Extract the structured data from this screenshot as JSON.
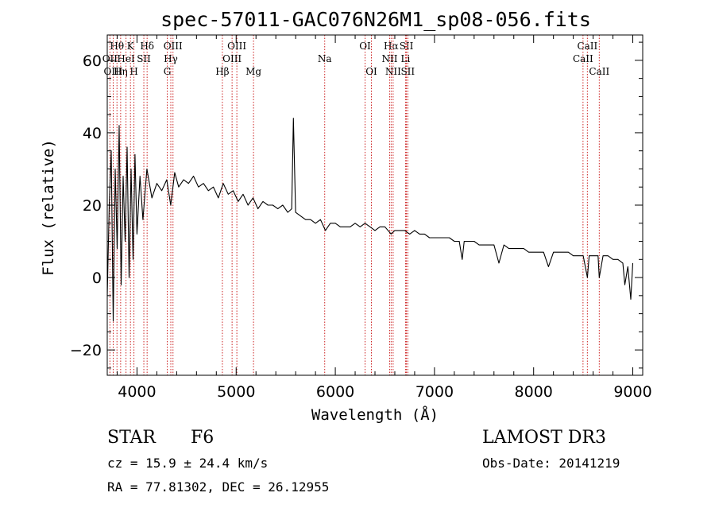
{
  "chart_data": {
    "type": "line",
    "title": "spec-57011-GAC076N26M1_sp08-056.fits",
    "xlabel": "Wavelength (Å)",
    "ylabel": "Flux (relative)",
    "xlim": [
      3700,
      9100
    ],
    "ylim": [
      -27,
      67
    ],
    "xticks": [
      4000,
      5000,
      6000,
      7000,
      8000,
      9000
    ],
    "yticks": [
      -20,
      0,
      20,
      40,
      60
    ],
    "line_color": "#000000",
    "marker_color": "#cc2222",
    "series": [
      {
        "name": "flux",
        "x": [
          3700,
          3720,
          3740,
          3760,
          3780,
          3800,
          3820,
          3840,
          3860,
          3880,
          3900,
          3920,
          3940,
          3960,
          3980,
          4000,
          4030,
          4060,
          4100,
          4150,
          4200,
          4250,
          4300,
          4340,
          4380,
          4420,
          4470,
          4520,
          4570,
          4620,
          4670,
          4720,
          4770,
          4820,
          4870,
          4920,
          4970,
          5020,
          5070,
          5120,
          5170,
          5220,
          5270,
          5320,
          5370,
          5420,
          5470,
          5520,
          5560,
          5577,
          5600,
          5650,
          5700,
          5750,
          5800,
          5850,
          5900,
          5950,
          6000,
          6050,
          6100,
          6150,
          6200,
          6250,
          6300,
          6350,
          6400,
          6450,
          6500,
          6563,
          6600,
          6650,
          6700,
          6750,
          6800,
          6850,
          6900,
          6950,
          7000,
          7050,
          7100,
          7150,
          7200,
          7250,
          7280,
          7300,
          7350,
          7400,
          7450,
          7500,
          7550,
          7600,
          7650,
          7700,
          7750,
          7800,
          7850,
          7900,
          7950,
          8000,
          8050,
          8100,
          8150,
          8200,
          8250,
          8300,
          8350,
          8400,
          8450,
          8500,
          8542,
          8560,
          8600,
          8650,
          8662,
          8700,
          8750,
          8800,
          8850,
          8900,
          8920,
          8950,
          8980,
          9000
        ],
        "values": [
          -5,
          20,
          35,
          -12,
          30,
          8,
          42,
          -2,
          28,
          10,
          36,
          0,
          30,
          5,
          34,
          12,
          28,
          16,
          30,
          22,
          26,
          24,
          27,
          20,
          29,
          25,
          27,
          26,
          28,
          25,
          26,
          24,
          25,
          22,
          26,
          23,
          24,
          21,
          23,
          20,
          22,
          19,
          21,
          20,
          20,
          19,
          20,
          18,
          19,
          44,
          18,
          17,
          16,
          16,
          15,
          16,
          13,
          15,
          15,
          14,
          14,
          14,
          15,
          14,
          15,
          14,
          13,
          14,
          14,
          12,
          13,
          13,
          13,
          12,
          13,
          12,
          12,
          11,
          11,
          11,
          11,
          11,
          10,
          10,
          5,
          10,
          10,
          10,
          9,
          9,
          9,
          9,
          4,
          9,
          8,
          8,
          8,
          8,
          7,
          7,
          7,
          7,
          3,
          7,
          7,
          7,
          7,
          6,
          6,
          6,
          0,
          6,
          6,
          6,
          0,
          6,
          6,
          5,
          5,
          4,
          -2,
          3,
          -6,
          4
        ]
      }
    ],
    "lines": [
      {
        "name": "Hθ",
        "x": 3798,
        "row": 0
      },
      {
        "name": "OII",
        "x": 3727,
        "row": 1
      },
      {
        "name": "OIII",
        "x": 3760,
        "row": 2
      },
      {
        "name": "Hη",
        "x": 3835,
        "row": 2
      },
      {
        "name": "K",
        "x": 3934,
        "row": 0
      },
      {
        "name": "HeI",
        "x": 3889,
        "row": 1
      },
      {
        "name": "SII",
        "x": 4069,
        "row": 1
      },
      {
        "name": "H",
        "x": 3969,
        "row": 2
      },
      {
        "name": "Hδ",
        "x": 4102,
        "row": 0
      },
      {
        "name": "OIII",
        "x": 4363,
        "row": 0
      },
      {
        "name": "Hγ",
        "x": 4341,
        "row": 1
      },
      {
        "name": "G",
        "x": 4305,
        "row": 2
      },
      {
        "name": "OIII",
        "x": 5007,
        "row": 0
      },
      {
        "name": "OIII",
        "x": 4959,
        "row": 1
      },
      {
        "name": "Hβ",
        "x": 4861,
        "row": 2
      },
      {
        "name": "Mg",
        "x": 5175,
        "row": 2
      },
      {
        "name": "Na",
        "x": 5893,
        "row": 1
      },
      {
        "name": "OI",
        "x": 6300,
        "row": 0
      },
      {
        "name": "OI",
        "x": 6364,
        "row": 2
      },
      {
        "name": "Hα",
        "x": 6563,
        "row": 0
      },
      {
        "name": "SII",
        "x": 6717,
        "row": 0
      },
      {
        "name": "NII",
        "x": 6548,
        "row": 1
      },
      {
        "name": "Li",
        "x": 6708,
        "row": 1
      },
      {
        "name": "NII",
        "x": 6583,
        "row": 2
      },
      {
        "name": "SII",
        "x": 6731,
        "row": 2
      },
      {
        "name": "CaII",
        "x": 8542,
        "row": 0
      },
      {
        "name": "CaII",
        "x": 8498,
        "row": 1
      },
      {
        "name": "CaII",
        "x": 8662,
        "row": 2
      }
    ]
  },
  "info": {
    "obj_class": "STAR",
    "subclass": "F6",
    "survey": "LAMOST DR3",
    "cz": "cz = 15.9 ± 24.4 km/s",
    "obs_date": "Obs-Date: 20141219",
    "coords": "RA =  77.81302, DEC =  26.12955"
  }
}
